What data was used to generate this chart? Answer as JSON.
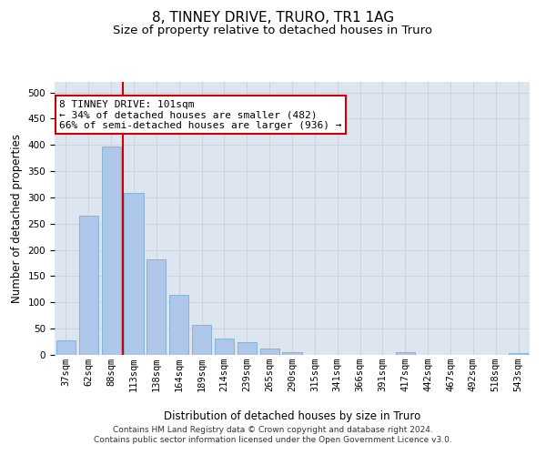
{
  "title": "8, TINNEY DRIVE, TRURO, TR1 1AG",
  "subtitle": "Size of property relative to detached houses in Truro",
  "xlabel": "Distribution of detached houses by size in Truro",
  "ylabel": "Number of detached properties",
  "categories": [
    "37sqm",
    "62sqm",
    "88sqm",
    "113sqm",
    "138sqm",
    "164sqm",
    "189sqm",
    "214sqm",
    "239sqm",
    "265sqm",
    "290sqm",
    "315sqm",
    "341sqm",
    "366sqm",
    "391sqm",
    "417sqm",
    "442sqm",
    "467sqm",
    "492sqm",
    "518sqm",
    "543sqm"
  ],
  "values": [
    27,
    265,
    397,
    308,
    182,
    115,
    57,
    32,
    24,
    13,
    6,
    0,
    0,
    0,
    0,
    5,
    0,
    0,
    0,
    0,
    4
  ],
  "bar_color": "#aec6e8",
  "bar_edgecolor": "#7aadd4",
  "vline_x": 2.5,
  "vline_color": "#cc0000",
  "annotation_text": "8 TINNEY DRIVE: 101sqm\n← 34% of detached houses are smaller (482)\n66% of semi-detached houses are larger (936) →",
  "annotation_box_color": "#ffffff",
  "annotation_box_edgecolor": "#cc0000",
  "ylim": [
    0,
    520
  ],
  "yticks": [
    0,
    50,
    100,
    150,
    200,
    250,
    300,
    350,
    400,
    450,
    500
  ],
  "grid_color": "#c8d0dc",
  "bg_color": "#dde5f0",
  "footer_text": "Contains HM Land Registry data © Crown copyright and database right 2024.\nContains public sector information licensed under the Open Government Licence v3.0.",
  "title_fontsize": 11,
  "subtitle_fontsize": 9.5,
  "axis_label_fontsize": 8.5,
  "tick_fontsize": 7.5,
  "annotation_fontsize": 8,
  "footer_fontsize": 6.5
}
